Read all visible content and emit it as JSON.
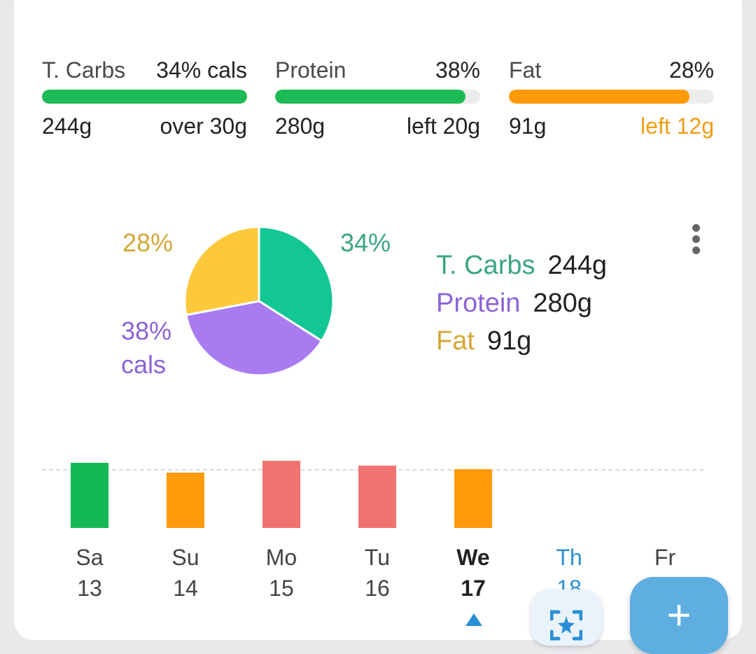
{
  "macros": [
    {
      "label": "T. Carbs",
      "pct": "34% cals",
      "grams": "244g",
      "status": "over 30g",
      "fill_fraction": 1.0,
      "color": "#1dbb55",
      "status_color": "#222222"
    },
    {
      "label": "Protein",
      "pct": "38%",
      "grams": "280g",
      "status": "left 20g",
      "fill_fraction": 0.93,
      "color": "#1dbb55",
      "status_color": "#222222"
    },
    {
      "label": "Fat",
      "pct": "28%",
      "grams": "91g",
      "status": "left 12g",
      "fill_fraction": 0.88,
      "color": "#ff9a0a",
      "status_color": "#f39c12"
    }
  ],
  "pie": {
    "labels": {
      "carbs": "34%",
      "protein_pct": "38%",
      "protein_unit": "cals",
      "fat": "28%"
    },
    "colors": {
      "carbs": "#12c795",
      "protein": "#a87cf0",
      "fat": "#fdc93a"
    }
  },
  "legend": [
    {
      "name": "T. Carbs",
      "value": "244g",
      "color": "#3aa57e"
    },
    {
      "name": "Protein",
      "value": "280g",
      "color": "#8c63d6"
    },
    {
      "name": "Fat",
      "value": "91g",
      "color": "#d4a738"
    }
  ],
  "chart_data": {
    "type": "pie",
    "categories": [
      "T. Carbs",
      "Protein",
      "Fat"
    ],
    "values": [
      34,
      38,
      28
    ],
    "unit": "% cals"
  },
  "week": {
    "days": [
      {
        "name": "Sa",
        "date": "13"
      },
      {
        "name": "Su",
        "date": "14"
      },
      {
        "name": "Mo",
        "date": "15"
      },
      {
        "name": "Tu",
        "date": "16"
      },
      {
        "name": "We",
        "date": "17"
      },
      {
        "name": "Th",
        "date": "18"
      },
      {
        "name": "Fr",
        "date": ""
      }
    ],
    "bars": [
      {
        "level": 0.97,
        "color": "#14b955"
      },
      {
        "level": 0.82,
        "color": "#ff9a0a"
      },
      {
        "level": 1.0,
        "color": "#f07371"
      },
      {
        "level": 0.93,
        "color": "#f07371"
      },
      {
        "level": 0.88,
        "color": "#ff9a0a"
      }
    ]
  },
  "buttons": {
    "add_label": "+"
  }
}
